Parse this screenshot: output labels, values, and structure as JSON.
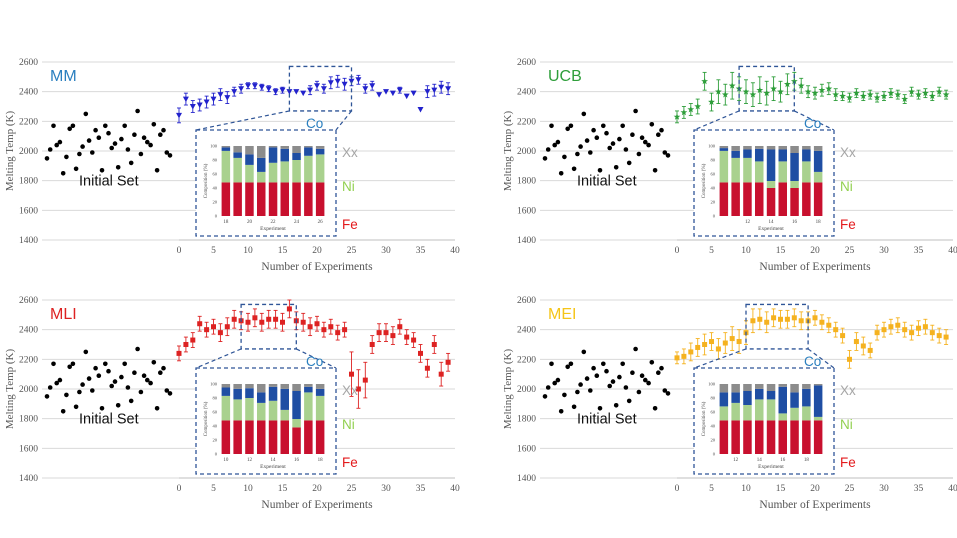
{
  "colors": {
    "MM": "#2222cc",
    "UCB": "#2e9e3a",
    "MLI": "#dd2222",
    "MEI": "#f5b21f",
    "label_MM": "#2a7fbf",
    "label_UCB": "#2e9e3a",
    "label_MLI": "#dd2222",
    "label_MEI": "#f5c518",
    "initial": "#000000",
    "Fe": "#c8102e",
    "Ni": "#a9d18e",
    "Co": "#1f4ea3",
    "Xx": "#8c8c8c",
    "text_Co": "#2a7fbf",
    "text_Ni": "#92d050",
    "text_Fe": "#e31a1c",
    "text_Xx": "#a6a6a6",
    "grid": "#d9d9d9",
    "dash": "#2f5597"
  },
  "chart_data": [
    {
      "type": "scatter",
      "label": "MM",
      "ylabel": "Melting Temp (K)",
      "xlabel": "Number of Experiments",
      "yticks": [
        1400,
        1600,
        1800,
        2000,
        2200,
        2400,
        2600
      ],
      "xticks": [
        0,
        5,
        10,
        15,
        20,
        25,
        30,
        35,
        40
      ],
      "ylim": [
        1400,
        2600
      ],
      "initial_set_label": "Initial Set",
      "initial_set_temps": [
        1950,
        2010,
        2170,
        2040,
        2060,
        1850,
        1960,
        2150,
        2170,
        1880,
        1980,
        2030,
        2250,
        2070,
        1990,
        2140,
        2090,
        1870,
        2170,
        2120,
        2020,
        2050,
        1890,
        2080,
        2170,
        2010,
        1920,
        2110,
        2270,
        1980,
        2090,
        2060,
        2040,
        2180,
        1870,
        2110,
        2140,
        1990,
        1970
      ],
      "series": {
        "name": "MM",
        "marker": "triangle-down",
        "x": [
          0,
          1,
          2,
          3,
          4,
          5,
          6,
          7,
          8,
          9,
          10,
          11,
          12,
          13,
          14,
          15,
          16,
          17,
          18,
          19,
          20,
          21,
          22,
          23,
          24,
          25,
          26,
          27,
          28,
          29,
          30,
          31,
          32,
          33,
          34,
          35,
          36,
          37,
          38,
          39
        ],
        "y": [
          2240,
          2350,
          2300,
          2310,
          2330,
          2350,
          2380,
          2360,
          2400,
          2420,
          2440,
          2440,
          2430,
          2420,
          2400,
          2410,
          2400,
          2400,
          2390,
          2410,
          2440,
          2420,
          2460,
          2470,
          2450,
          2470,
          2480,
          2420,
          2440,
          2380,
          2400,
          2390,
          2410,
          2370,
          2390,
          2280,
          2400,
          2410,
          2430,
          2420
        ],
        "err": [
          50,
          40,
          40,
          40,
          40,
          40,
          40,
          40,
          30,
          30,
          20,
          20,
          20,
          20,
          20,
          20,
          0,
          0,
          0,
          30,
          30,
          30,
          40,
          40,
          40,
          30,
          30,
          30,
          30,
          0,
          0,
          0,
          20,
          0,
          0,
          0,
          40,
          40,
          40,
          40
        ]
      },
      "zoom_box_x": [
        16,
        25
      ],
      "inset": {
        "xlabel": "Experiment",
        "ylabel": "Composition (%)",
        "xticks": [
          18,
          20,
          22,
          24,
          26
        ],
        "yticks": [
          0,
          20,
          40,
          60,
          80,
          100
        ],
        "experiments": [
          18,
          19,
          20,
          21,
          22,
          23,
          24,
          25,
          26
        ],
        "Fe": [
          48,
          48,
          48,
          48,
          48,
          48,
          48,
          48,
          48
        ],
        "Ni": [
          45,
          35,
          25,
          15,
          28,
          30,
          32,
          38,
          40
        ],
        "Co": [
          5,
          8,
          15,
          20,
          22,
          18,
          10,
          12,
          8
        ],
        "Xx": [
          2,
          9,
          12,
          17,
          2,
          4,
          10,
          2,
          4
        ]
      },
      "legend_labels": {
        "co": "Co",
        "xx": "Xx",
        "ni": "Ni",
        "fe": "Fe"
      }
    },
    {
      "type": "scatter",
      "label": "UCB",
      "ylabel": "Melting Temp (K)",
      "xlabel": "Number of Experiments",
      "yticks": [
        1400,
        1600,
        1800,
        2000,
        2200,
        2400,
        2600
      ],
      "xticks": [
        0,
        5,
        10,
        15,
        20,
        25,
        30,
        35,
        40
      ],
      "ylim": [
        1400,
        2600
      ],
      "initial_set_label": "Initial Set",
      "initial_set_temps": [
        1950,
        2010,
        2170,
        2040,
        2060,
        1850,
        1960,
        2150,
        2170,
        1880,
        1980,
        2030,
        2250,
        2070,
        1990,
        2140,
        2090,
        1870,
        2170,
        2120,
        2020,
        2050,
        1890,
        2080,
        2170,
        2010,
        1920,
        2110,
        2270,
        1980,
        2090,
        2060,
        2040,
        2180,
        1870,
        2110,
        2140,
        1990,
        1970
      ],
      "series": {
        "name": "UCB",
        "marker": "star",
        "x": [
          0,
          1,
          2,
          3,
          4,
          5,
          6,
          7,
          8,
          9,
          10,
          11,
          12,
          13,
          14,
          15,
          16,
          17,
          18,
          19,
          20,
          21,
          22,
          23,
          24,
          25,
          26,
          27,
          28,
          29,
          30,
          31,
          32,
          33,
          34,
          35,
          36,
          37,
          38,
          39
        ],
        "y": [
          2230,
          2260,
          2280,
          2300,
          2470,
          2330,
          2400,
          2380,
          2440,
          2420,
          2400,
          2380,
          2410,
          2390,
          2420,
          2400,
          2450,
          2470,
          2440,
          2400,
          2390,
          2410,
          2420,
          2380,
          2370,
          2360,
          2390,
          2370,
          2380,
          2360,
          2370,
          2390,
          2380,
          2350,
          2400,
          2380,
          2390,
          2370,
          2400,
          2380
        ],
        "err": [
          40,
          40,
          40,
          50,
          60,
          60,
          80,
          70,
          90,
          80,
          80,
          80,
          90,
          80,
          80,
          70,
          70,
          60,
          50,
          40,
          40,
          40,
          40,
          40,
          30,
          30,
          30,
          30,
          30,
          30,
          30,
          30,
          30,
          30,
          30,
          30,
          30,
          30,
          30,
          30
        ]
      },
      "zoom_box_x": [
        9,
        17
      ],
      "inset": {
        "xlabel": "Experiment",
        "ylabel": "Composition (%)",
        "xticks": [
          12,
          14,
          16,
          18
        ],
        "yticks": [
          0,
          20,
          40,
          60,
          80,
          100
        ],
        "experiments": [
          10,
          11,
          12,
          13,
          14,
          15,
          16,
          17,
          18
        ],
        "Fe": [
          48,
          48,
          48,
          48,
          40,
          48,
          40,
          48,
          48
        ],
        "Ni": [
          45,
          35,
          35,
          30,
          10,
          30,
          10,
          30,
          15
        ],
        "Co": [
          4,
          10,
          12,
          18,
          45,
          17,
          40,
          17,
          30
        ],
        "Xx": [
          3,
          7,
          5,
          4,
          5,
          5,
          10,
          5,
          7
        ]
      },
      "legend_labels": {
        "co": "Co",
        "xx": "Xx",
        "ni": "Ni",
        "fe": "Fe"
      }
    },
    {
      "type": "scatter",
      "label": "MLI",
      "ylabel": "Melting Temp (K)",
      "xlabel": "Number of Experiments",
      "yticks": [
        1400,
        1600,
        1800,
        2000,
        2200,
        2400,
        2600
      ],
      "xticks": [
        0,
        5,
        10,
        15,
        20,
        25,
        30,
        35,
        40
      ],
      "ylim": [
        1400,
        2600
      ],
      "initial_set_label": "Initial Set",
      "initial_set_temps": [
        1950,
        2010,
        2170,
        2040,
        2060,
        1850,
        1960,
        2150,
        2170,
        1880,
        1980,
        2030,
        2250,
        2070,
        1990,
        2140,
        2090,
        1870,
        2170,
        2120,
        2020,
        2050,
        1890,
        2080,
        2170,
        2010,
        1920,
        2110,
        2270,
        1980,
        2090,
        2060,
        2040,
        2180,
        1870,
        2110,
        2140,
        1990,
        1970
      ],
      "series": {
        "name": "MLI",
        "marker": "square",
        "x": [
          0,
          1,
          2,
          3,
          4,
          5,
          6,
          7,
          8,
          9,
          10,
          11,
          12,
          13,
          14,
          15,
          16,
          17,
          18,
          19,
          20,
          21,
          22,
          23,
          24,
          25,
          26,
          27,
          28,
          29,
          30,
          31,
          32,
          33,
          34,
          35,
          36,
          37,
          38,
          39
        ],
        "y": [
          2240,
          2300,
          2330,
          2440,
          2400,
          2420,
          2380,
          2420,
          2470,
          2460,
          2450,
          2480,
          2450,
          2470,
          2470,
          2450,
          2540,
          2460,
          2450,
          2420,
          2440,
          2400,
          2420,
          2380,
          2400,
          2100,
          2000,
          2060,
          2300,
          2380,
          2380,
          2360,
          2420,
          2350,
          2330,
          2240,
          2140,
          2300,
          2100,
          2180
        ],
        "err": [
          50,
          50,
          50,
          50,
          50,
          50,
          60,
          60,
          60,
          60,
          60,
          60,
          60,
          60,
          60,
          60,
          60,
          60,
          60,
          60,
          50,
          50,
          50,
          50,
          50,
          150,
          130,
          120,
          60,
          60,
          60,
          60,
          50,
          50,
          50,
          60,
          60,
          60,
          80,
          60
        ]
      },
      "zoom_box_x": [
        9,
        17
      ],
      "inset": {
        "xlabel": "Experiment",
        "ylabel": "Composition (%)",
        "xticks": [
          10,
          12,
          14,
          16,
          18
        ],
        "yticks": [
          0,
          20,
          40,
          60,
          80,
          100
        ],
        "experiments": [
          10,
          11,
          12,
          13,
          14,
          15,
          16,
          17,
          18
        ],
        "Fe": [
          48,
          48,
          48,
          48,
          48,
          48,
          38,
          48,
          48
        ],
        "Ni": [
          35,
          30,
          32,
          25,
          28,
          15,
          12,
          40,
          35
        ],
        "Co": [
          12,
          15,
          14,
          15,
          20,
          30,
          40,
          8,
          10
        ],
        "Xx": [
          5,
          7,
          6,
          12,
          4,
          7,
          10,
          4,
          7
        ]
      },
      "legend_labels": {
        "co": "Co",
        "xx": "Xx",
        "ni": "Ni",
        "fe": "Fe"
      }
    },
    {
      "type": "scatter",
      "label": "MEI",
      "ylabel": "Melting Temp (K)",
      "xlabel": "Number of Experiments",
      "yticks": [
        1400,
        1600,
        1800,
        2000,
        2200,
        2400,
        2600
      ],
      "xticks": [
        0,
        5,
        10,
        15,
        20,
        25,
        30,
        35,
        40
      ],
      "ylim": [
        1400,
        2600
      ],
      "initial_set_label": "Initial Set",
      "initial_set_temps": [
        1950,
        2010,
        2170,
        2040,
        2060,
        1850,
        1960,
        2150,
        2170,
        1880,
        1980,
        2030,
        2250,
        2070,
        1990,
        2140,
        2090,
        1870,
        2170,
        2120,
        2020,
        2050,
        1890,
        2080,
        2170,
        2010,
        1920,
        2110,
        2270,
        1980,
        2090,
        2060,
        2040,
        2180,
        1870,
        2110,
        2140,
        1990,
        1970
      ],
      "series": {
        "name": "MEI",
        "marker": "square",
        "x": [
          0,
          1,
          2,
          3,
          4,
          5,
          6,
          7,
          8,
          9,
          10,
          11,
          12,
          13,
          14,
          15,
          16,
          17,
          18,
          19,
          20,
          21,
          22,
          23,
          24,
          25,
          26,
          27,
          28,
          29,
          30,
          31,
          32,
          33,
          34,
          35,
          36,
          37,
          38,
          39
        ],
        "y": [
          2210,
          2220,
          2250,
          2280,
          2300,
          2320,
          2270,
          2310,
          2340,
          2320,
          2380,
          2460,
          2470,
          2450,
          2480,
          2470,
          2470,
          2480,
          2460,
          2460,
          2480,
          2450,
          2430,
          2400,
          2360,
          2200,
          2320,
          2290,
          2260,
          2380,
          2400,
          2420,
          2430,
          2400,
          2380,
          2410,
          2420,
          2380,
          2360,
          2350
        ],
        "err": [
          40,
          50,
          60,
          60,
          70,
          60,
          70,
          70,
          80,
          80,
          80,
          80,
          70,
          70,
          60,
          60,
          60,
          60,
          60,
          60,
          50,
          50,
          50,
          50,
          50,
          60,
          60,
          60,
          50,
          50,
          50,
          50,
          50,
          50,
          50,
          50,
          50,
          50,
          50,
          50
        ]
      },
      "zoom_box_x": [
        10,
        19
      ],
      "inset": {
        "xlabel": "Experiment",
        "ylabel": "Composition (%)",
        "xticks": [
          12,
          14,
          16,
          18
        ],
        "yticks": [
          0,
          20,
          40,
          60,
          80,
          100
        ],
        "experiments": [
          11,
          12,
          13,
          14,
          15,
          16,
          17,
          18,
          19
        ],
        "Fe": [
          48,
          48,
          48,
          48,
          48,
          48,
          48,
          48,
          48
        ],
        "Ni": [
          20,
          25,
          22,
          30,
          30,
          10,
          18,
          20,
          5
        ],
        "Co": [
          20,
          15,
          20,
          15,
          12,
          38,
          22,
          25,
          45
        ],
        "Xx": [
          12,
          12,
          10,
          7,
          10,
          4,
          12,
          7,
          2
        ]
      },
      "legend_labels": {
        "co": "Co",
        "xx": "Xx",
        "ni": "Ni",
        "fe": "Fe"
      }
    }
  ]
}
